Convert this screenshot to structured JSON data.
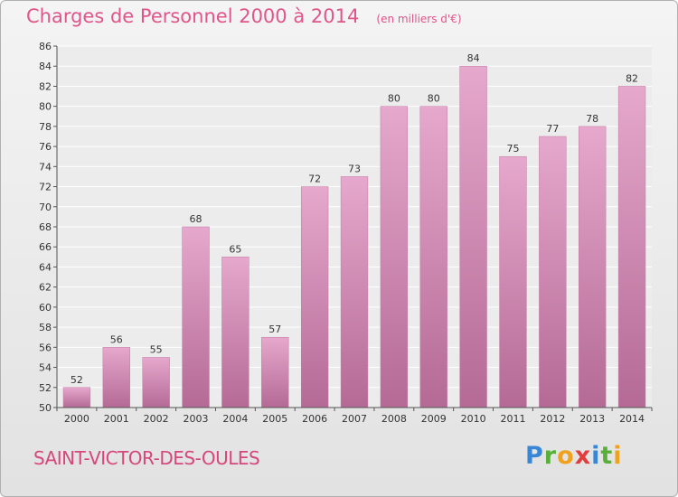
{
  "header": {
    "title": "Charges de Personnel 2000 à 2014",
    "subtitle": "(en milliers d'€)"
  },
  "footer": {
    "commune": "SAINT-VICTOR-DES-OULES",
    "logo_letters": [
      {
        "char": "P",
        "color": "#3a86d6"
      },
      {
        "char": "r",
        "color": "#58b03a"
      },
      {
        "char": "o",
        "color": "#f0a21e"
      },
      {
        "char": "x",
        "color": "#e23c3c"
      },
      {
        "char": "i",
        "color": "#3a86d6"
      },
      {
        "char": "t",
        "color": "#58b03a"
      },
      {
        "char": "i",
        "color": "#f0a21e"
      }
    ]
  },
  "chart_data": {
    "type": "bar",
    "categories": [
      "2000",
      "2001",
      "2002",
      "2003",
      "2004",
      "2005",
      "2006",
      "2007",
      "2008",
      "2009",
      "2010",
      "2011",
      "2012",
      "2013",
      "2014"
    ],
    "values": [
      52,
      56,
      55,
      68,
      65,
      57,
      72,
      73,
      80,
      80,
      84,
      75,
      77,
      78,
      82
    ],
    "ylim": [
      50,
      86
    ],
    "yticks": [
      50,
      52,
      54,
      56,
      58,
      60,
      62,
      64,
      66,
      68,
      70,
      72,
      74,
      76,
      78,
      80,
      82,
      84,
      86
    ],
    "xlabel": "",
    "ylabel": "",
    "grid": true,
    "bar_color_top": "#e6a8cd",
    "bar_color_bottom": "#b46a95"
  }
}
